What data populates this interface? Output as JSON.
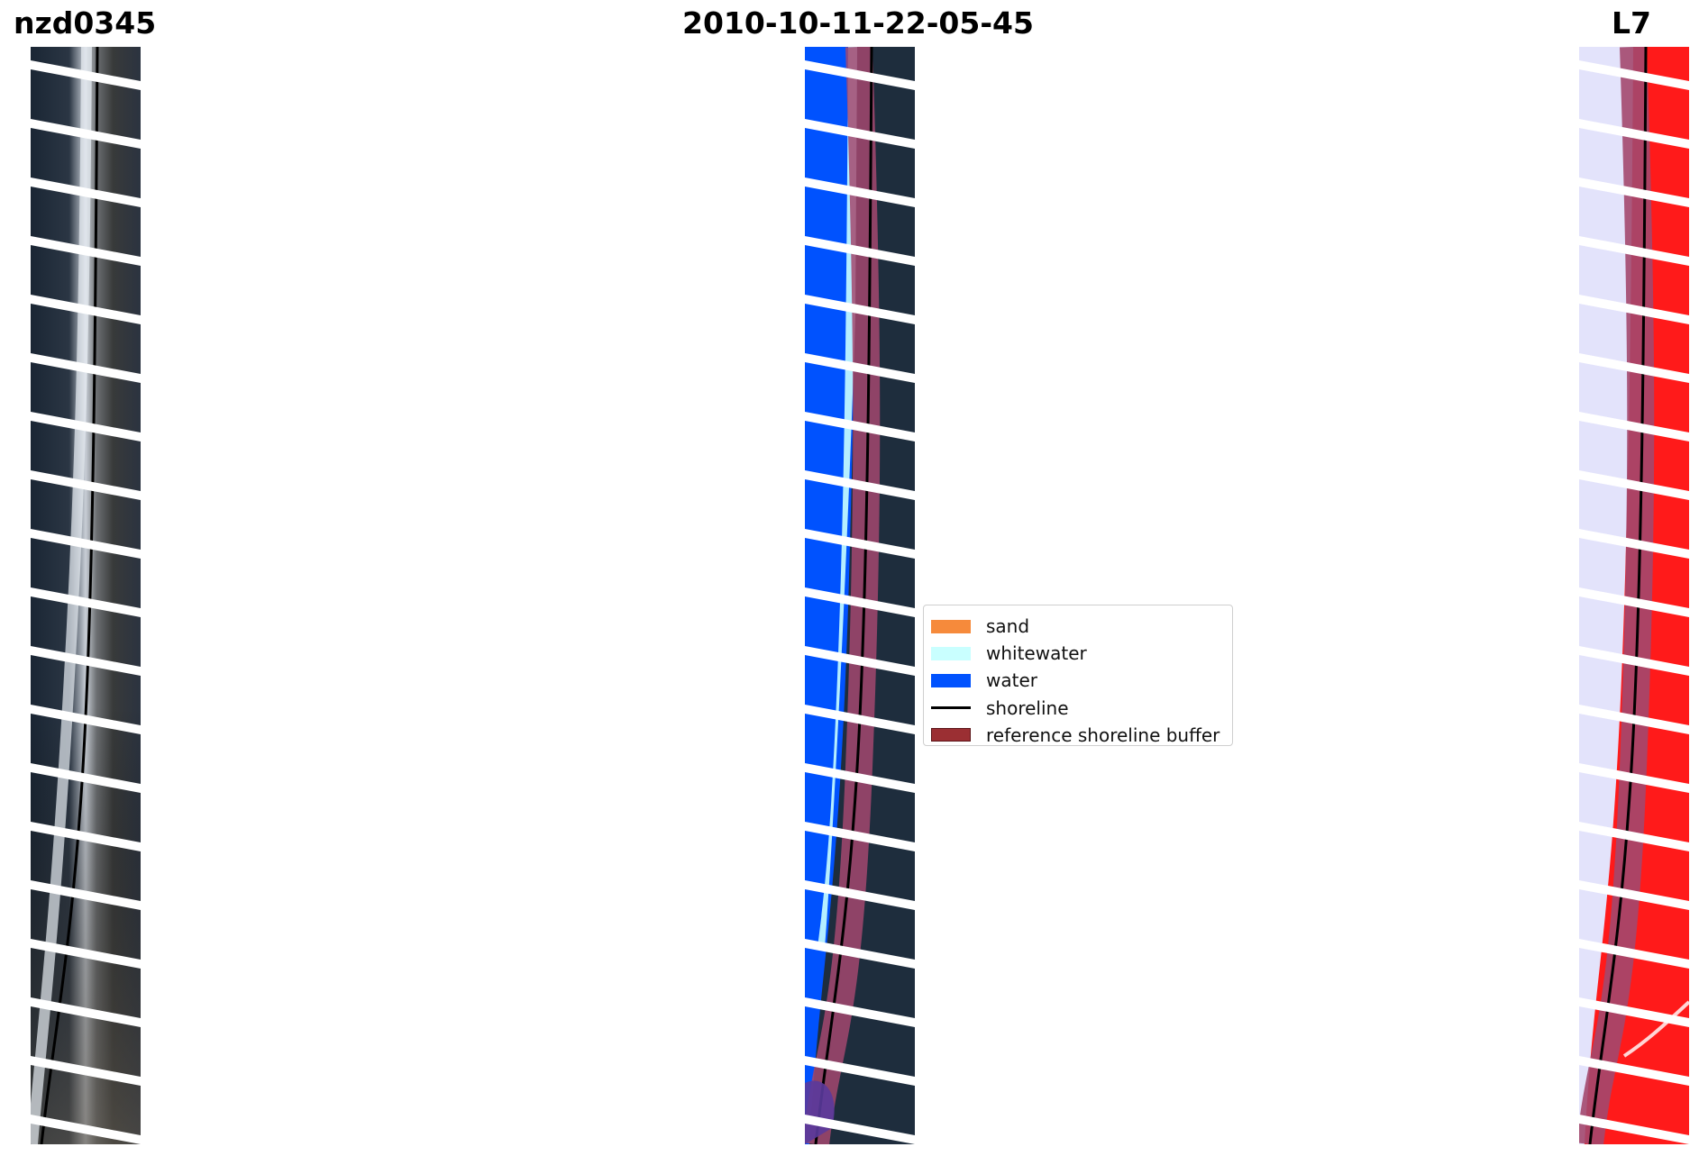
{
  "titles": {
    "site": "nzd0345",
    "date": "2010-10-11-22-05-45",
    "satellite": "L7"
  },
  "panels": {
    "rgb": {
      "icon": "satellite-rgb-image"
    },
    "classification": {
      "icon": "classified-image"
    },
    "ndwi": {
      "icon": "water-index-image"
    }
  },
  "legend": {
    "items": [
      {
        "label": "sand",
        "color": "#f68a3b",
        "kind": "patch"
      },
      {
        "label": "whitewater",
        "color": "#c9ffff",
        "kind": "patch"
      },
      {
        "label": "water",
        "color": "#0052fe",
        "kind": "patch"
      },
      {
        "label": "shoreline",
        "color": "#000000",
        "kind": "line"
      },
      {
        "label": "reference shoreline buffer",
        "color": "#9b2f33",
        "kind": "patch"
      }
    ]
  }
}
